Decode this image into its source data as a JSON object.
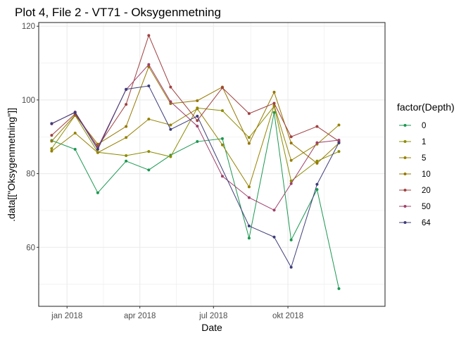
{
  "chart_data": {
    "type": "line",
    "title": "Plot 4, File 2 - VT71  -  Oksygenmetning",
    "xlabel": "Date",
    "ylabel": ".data[[\"Oksygenmetning\"]]",
    "x_ticks": [
      {
        "date": "2018-01-01",
        "label": "jan 2018"
      },
      {
        "date": "2018-04-01",
        "label": "apr 2018"
      },
      {
        "date": "2018-07-01",
        "label": "jul 2018"
      },
      {
        "date": "2018-10-01",
        "label": "okt 2018"
      }
    ],
    "xlim": [
      "2017-11-27",
      "2019-01-29"
    ],
    "y_ticks": [
      60,
      80,
      100,
      120
    ],
    "ylim": [
      44,
      121
    ],
    "grid": true,
    "legend": {
      "title": "factor(Depth)",
      "position": "right"
    },
    "x": [
      "2017-12-13",
      "2018-01-11",
      "2018-02-08",
      "2018-03-15",
      "2018-04-12",
      "2018-05-09",
      "2018-06-11",
      "2018-07-12",
      "2018-08-14",
      "2018-09-14",
      "2018-10-05",
      "2018-11-06",
      "2018-12-03",
      "2019-01-09"
    ],
    "series": [
      {
        "name": "0",
        "color": "#1a9850",
        "values": [
          89.0,
          86.6,
          74.8,
          83.4,
          81.0,
          85.0,
          88.7,
          89.5,
          62.5,
          96.6,
          62.0,
          75.7,
          48.8,
          null
        ]
      },
      {
        "name": "1",
        "color": "#8c8c00",
        "values": [
          86.8,
          95.8,
          85.8,
          84.9,
          86.0,
          84.6,
          97.8,
          97.1,
          89.8,
          98.3,
          78.0,
          83.4,
          86.0,
          null
        ]
      },
      {
        "name": "5",
        "color": "#968200",
        "values": [
          86.1,
          91.0,
          85.7,
          89.8,
          94.8,
          93.2,
          97.6,
          87.8,
          76.4,
          98.5,
          83.6,
          88.0,
          93.2,
          null
        ]
      },
      {
        "name": "10",
        "color": "#967800",
        "values": [
          88.8,
          95.9,
          88.0,
          92.8,
          109.0,
          99.0,
          99.8,
          103.5,
          88.2,
          102.1,
          88.3,
          82.8,
          88.3,
          null
        ]
      },
      {
        "name": "20",
        "color": "#a04040",
        "values": [
          90.4,
          96.2,
          87.3,
          98.8,
          117.5,
          103.5,
          94.4,
          103.3,
          96.3,
          99.1,
          90.0,
          92.8,
          88.8,
          null
        ]
      },
      {
        "name": "50",
        "color": "#a0406a",
        "values": [
          93.5,
          96.7,
          87.1,
          102.8,
          109.6,
          99.5,
          92.9,
          79.3,
          73.5,
          70.1,
          77.3,
          88.4,
          89.1,
          null
        ]
      },
      {
        "name": "64",
        "color": "#3d3d7a",
        "values": [
          93.6,
          96.6,
          86.6,
          102.9,
          103.8,
          92.0,
          95.6,
          null,
          65.8,
          62.8,
          54.6,
          77.1,
          88.4,
          null
        ]
      }
    ]
  }
}
